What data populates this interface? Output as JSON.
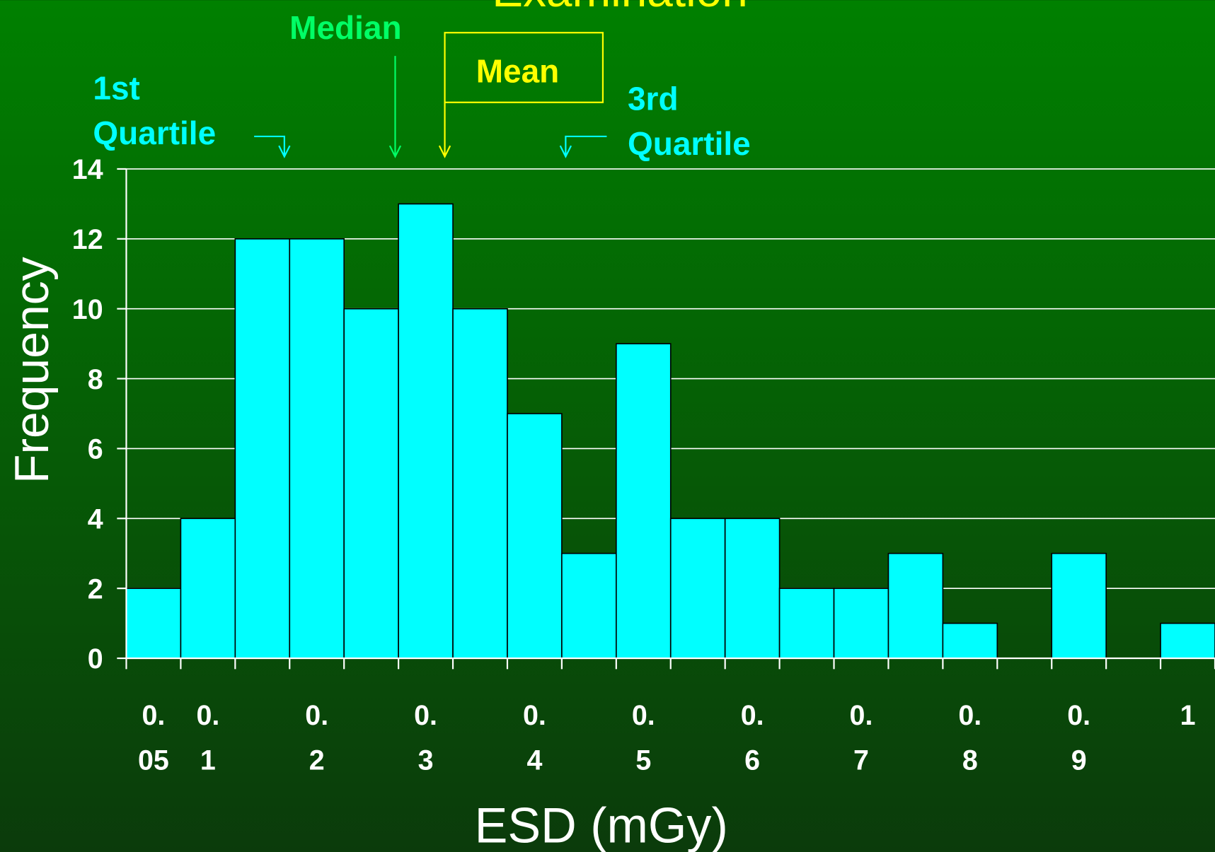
{
  "chart_data": {
    "type": "bar",
    "title": "Examination",
    "x_label": "ESD (mGy)",
    "y_label": "Frequency",
    "annotations": [
      "Median",
      "Mean",
      "1st Quartile",
      "3rd Quartile"
    ],
    "categories": [
      "0.05",
      "0.1",
      null,
      "0.2",
      null,
      "0.3",
      null,
      "0.4",
      null,
      "0.5",
      null,
      "0.6",
      null,
      "0.7",
      null,
      "0.8",
      null,
      "0.9",
      null,
      "1"
    ],
    "values": [
      2,
      4,
      12,
      12,
      10,
      13,
      10,
      7,
      3,
      9,
      4,
      4,
      2,
      2,
      3,
      1,
      0,
      3,
      0,
      1
    ],
    "color": "#00ffff",
    "ylim": [
      0,
      14
    ],
    "yticks": [
      0,
      2,
      4,
      6,
      8,
      10,
      12,
      14
    ],
    "grid": true
  }
}
